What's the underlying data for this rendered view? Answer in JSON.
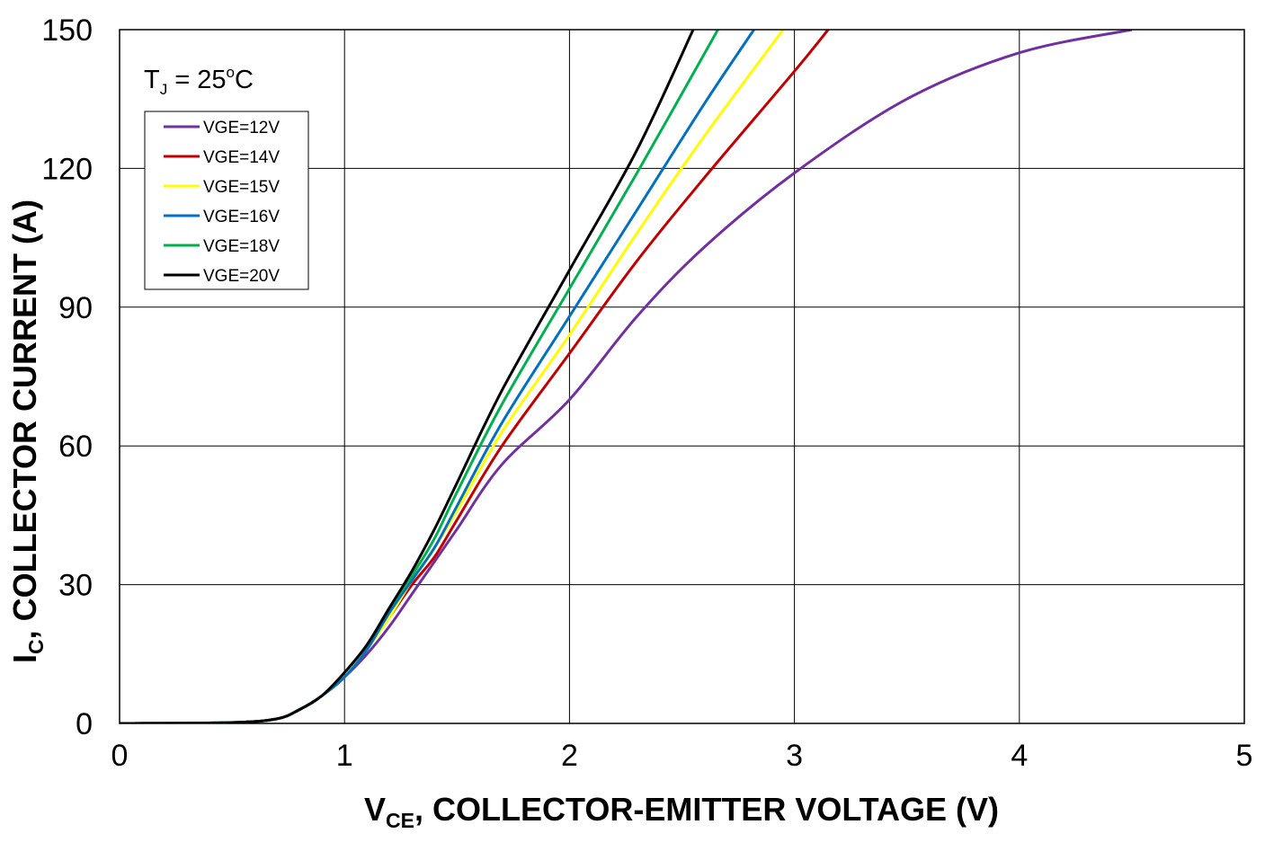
{
  "chart_data": {
    "type": "line",
    "title": "",
    "annotation": {
      "base": "T",
      "sub": "J",
      "eq": " = 25",
      "sup": "o",
      "unit": "C"
    },
    "xlabel": {
      "base": "V",
      "sub": "CE",
      "rest": ", COLLECTOR-EMITTER VOLTAGE (V)"
    },
    "ylabel": {
      "base": "I",
      "sub": "C",
      "rest": ", COLLECTOR CURRENT (A)"
    },
    "xlim": [
      0,
      5
    ],
    "ylim": [
      0,
      150
    ],
    "xticks": [
      0,
      1,
      2,
      3,
      4,
      5
    ],
    "yticks": [
      0,
      30,
      60,
      90,
      120,
      150
    ],
    "grid": true,
    "legend_position": "top-left",
    "series": [
      {
        "name": "VGE=12V",
        "color": "#7030A0",
        "x": [
          0,
          0.5,
          0.7,
          0.8,
          0.9,
          1.0,
          1.1,
          1.2,
          1.3,
          1.4,
          1.5,
          1.7,
          2.0,
          2.3,
          2.6,
          3.0,
          3.5,
          4.0,
          4.5
        ],
        "y": [
          0,
          0.2,
          1,
          3,
          6,
          10,
          15,
          21,
          28,
          35,
          42,
          56,
          70,
          88,
          103,
          119,
          135,
          145,
          150
        ]
      },
      {
        "name": "VGE=14V",
        "color": "#C00000",
        "x": [
          0,
          0.5,
          0.7,
          0.8,
          0.9,
          1.0,
          1.1,
          1.2,
          1.3,
          1.4,
          1.5,
          1.7,
          2.0,
          2.3,
          2.6,
          3.0,
          3.15
        ],
        "y": [
          0,
          0.2,
          1,
          3,
          6,
          10,
          16,
          23,
          30,
          36,
          44,
          60,
          80,
          100,
          118,
          141,
          150
        ]
      },
      {
        "name": "VGE=15V",
        "color": "#FFFF00",
        "x": [
          0,
          0.5,
          0.7,
          0.8,
          0.9,
          1.0,
          1.1,
          1.2,
          1.3,
          1.4,
          1.5,
          1.7,
          2.0,
          2.3,
          2.6,
          2.95
        ],
        "y": [
          0,
          0.2,
          1,
          3,
          6,
          10,
          16,
          23,
          31,
          38,
          46,
          63,
          84,
          106,
          127,
          150
        ]
      },
      {
        "name": "VGE=16V",
        "color": "#0070C0",
        "x": [
          0,
          0.5,
          0.7,
          0.8,
          0.9,
          1.0,
          1.1,
          1.2,
          1.3,
          1.4,
          1.5,
          1.7,
          2.0,
          2.3,
          2.6,
          2.82
        ],
        "y": [
          0,
          0.2,
          1,
          3,
          6,
          10,
          16,
          24,
          31,
          38,
          47,
          65,
          88,
          111,
          134,
          150
        ]
      },
      {
        "name": "VGE=18V",
        "color": "#00B050",
        "x": [
          0,
          0.5,
          0.7,
          0.8,
          0.9,
          1.0,
          1.1,
          1.2,
          1.3,
          1.4,
          1.5,
          1.7,
          2.0,
          2.3,
          2.66
        ],
        "y": [
          0,
          0.2,
          1,
          3,
          6,
          11,
          17,
          25,
          32,
          40,
          50,
          69,
          94,
          119,
          150
        ]
      },
      {
        "name": "VGE=20V",
        "color": "#000000",
        "x": [
          0,
          0.5,
          0.7,
          0.8,
          0.9,
          1.0,
          1.1,
          1.2,
          1.3,
          1.4,
          1.5,
          1.7,
          2.0,
          2.3,
          2.55
        ],
        "y": [
          0,
          0.2,
          1,
          3,
          6,
          11,
          17,
          25,
          33,
          42,
          52,
          72,
          98,
          124,
          150
        ]
      }
    ]
  }
}
